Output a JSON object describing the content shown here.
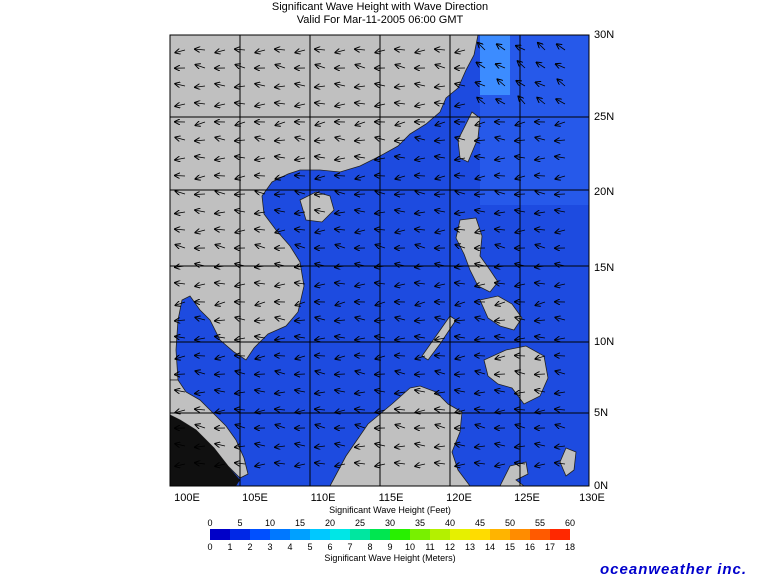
{
  "title": "Significant Wave Height with Wave Direction",
  "subtitle": "Valid For Mar-11-2005 06:00 GMT",
  "map": {
    "lon_labels": [
      "100E",
      "105E",
      "110E",
      "115E",
      "120E",
      "125E",
      "130E"
    ],
    "lat_labels": [
      "30N",
      "25N",
      "20N",
      "15N",
      "10N",
      "5N",
      "0N"
    ],
    "colors": {
      "land": "#c0c0c0",
      "sea": "#1d4be0",
      "sea_light": "#2f6cf0",
      "grid": "#000000"
    }
  },
  "colorbar": {
    "feet_caption": "Significant Wave Height (Feet)",
    "meters_caption": "Significant Wave Height (Meters)",
    "feet_ticks": [
      "0",
      "5",
      "10",
      "15",
      "20",
      "25",
      "30",
      "35",
      "40",
      "45",
      "50",
      "55",
      "60"
    ],
    "meter_ticks": [
      "0",
      "1",
      "2",
      "3",
      "4",
      "5",
      "6",
      "7",
      "8",
      "9",
      "10",
      "11",
      "12",
      "13",
      "14",
      "15",
      "16",
      "17",
      "18"
    ],
    "colors": [
      "#0000c8",
      "#0028e6",
      "#0050ff",
      "#0078ff",
      "#00a0ff",
      "#00c8ff",
      "#00e6e6",
      "#00e6a0",
      "#00e650",
      "#28f000",
      "#78f000",
      "#b4f000",
      "#e6f000",
      "#ffdc00",
      "#ffb400",
      "#ff8c00",
      "#ff5a00",
      "#ff2800"
    ]
  },
  "brand": "oceanweather inc."
}
